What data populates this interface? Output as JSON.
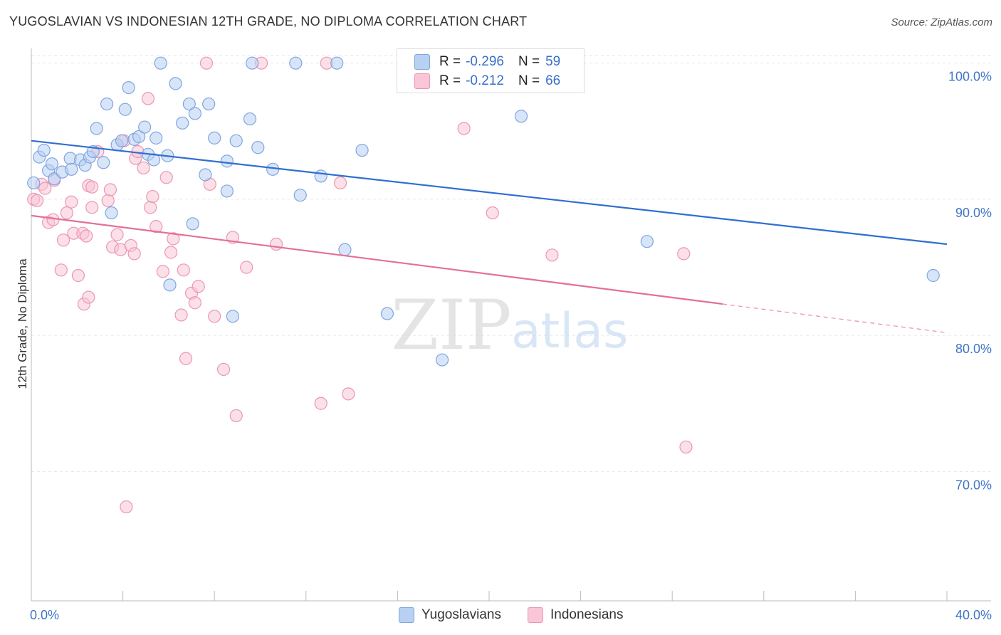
{
  "title": "YUGOSLAVIAN VS INDONESIAN 12TH GRADE, NO DIPLOMA CORRELATION CHART",
  "source": "Source: ZipAtlas.com",
  "watermark": {
    "zip": "ZIP",
    "atlas": "atlas"
  },
  "colors": {
    "blue_fill": "#b8d0f2",
    "blue_stroke": "#7ea6e0",
    "blue_line": "#2f6fd0",
    "pink_fill": "#f8c6d6",
    "pink_stroke": "#ec96b4",
    "pink_line": "#e46f97",
    "tick_label": "#3f74c7",
    "grid": "#e6e6e6"
  },
  "legend": {
    "r_label": "R =",
    "n_label": "N =",
    "rows": [
      {
        "series": "Yugoslavians",
        "r": "-0.296",
        "n": "59",
        "color": "#b8d0f2",
        "border": "#7ea6e0"
      },
      {
        "series": "Indonesians",
        "r": "-0.212",
        "n": "66",
        "color": "#f8c6d6",
        "border": "#ec96b4"
      }
    ]
  },
  "chart_data": {
    "type": "scatter",
    "title": "YUGOSLAVIAN VS INDONESIAN 12TH GRADE, NO DIPLOMA CORRELATION CHART",
    "xlabel": "",
    "ylabel": "12th Grade, No Diploma",
    "x_ticks": [
      "0.0%",
      "40.0%"
    ],
    "y_ticks": [
      "70.0%",
      "80.0%",
      "90.0%",
      "100.0%"
    ],
    "xlim": [
      0,
      40
    ],
    "ylim": [
      60.5,
      101.5
    ],
    "y_gridlines": [
      70,
      80,
      90,
      100
    ],
    "legend_position": "top-center",
    "series": [
      {
        "name": "Yugoslavians",
        "color": "#b8d0f2",
        "trend": {
          "x": [
            0,
            40
          ],
          "y": [
            94.3,
            86.7
          ],
          "dashed_from": null
        },
        "points": [
          [
            0.1,
            91.2
          ],
          [
            0.35,
            93.1
          ],
          [
            0.55,
            93.6
          ],
          [
            0.75,
            92.1
          ],
          [
            0.9,
            92.6
          ],
          [
            1.0,
            91.5
          ],
          [
            1.35,
            92.0
          ],
          [
            1.7,
            93.0
          ],
          [
            1.75,
            92.2
          ],
          [
            2.15,
            92.9
          ],
          [
            2.35,
            92.5
          ],
          [
            2.55,
            93.1
          ],
          [
            2.7,
            93.5
          ],
          [
            2.85,
            95.2
          ],
          [
            3.15,
            92.7
          ],
          [
            3.3,
            97.0
          ],
          [
            3.5,
            89.0
          ],
          [
            3.75,
            94.0
          ],
          [
            3.95,
            94.3
          ],
          [
            4.1,
            96.6
          ],
          [
            4.25,
            98.2
          ],
          [
            4.5,
            94.4
          ],
          [
            4.7,
            94.6
          ],
          [
            4.95,
            95.3
          ],
          [
            5.1,
            93.3
          ],
          [
            5.35,
            92.9
          ],
          [
            5.45,
            94.5
          ],
          [
            5.65,
            100.0
          ],
          [
            5.95,
            93.2
          ],
          [
            6.05,
            83.7
          ],
          [
            6.3,
            98.5
          ],
          [
            6.6,
            95.6
          ],
          [
            6.9,
            97.0
          ],
          [
            7.05,
            88.2
          ],
          [
            7.15,
            96.3
          ],
          [
            7.6,
            91.8
          ],
          [
            7.75,
            97.0
          ],
          [
            8.0,
            94.5
          ],
          [
            8.55,
            92.8
          ],
          [
            8.55,
            90.6
          ],
          [
            8.8,
            81.4
          ],
          [
            8.95,
            94.3
          ],
          [
            9.55,
            95.9
          ],
          [
            9.65,
            100.0
          ],
          [
            9.9,
            93.8
          ],
          [
            10.55,
            92.2
          ],
          [
            11.55,
            100.0
          ],
          [
            11.75,
            90.3
          ],
          [
            12.65,
            91.7
          ],
          [
            13.35,
            100.0
          ],
          [
            13.7,
            86.3
          ],
          [
            14.45,
            93.6
          ],
          [
            15.55,
            81.6
          ],
          [
            17.95,
            78.2
          ],
          [
            21.4,
            96.1
          ],
          [
            26.9,
            86.9
          ],
          [
            39.4,
            84.4
          ]
        ]
      },
      {
        "name": "Indonesians",
        "color": "#f8c6d6",
        "trend": {
          "x": [
            0,
            40
          ],
          "y": [
            88.8,
            80.2
          ],
          "dashed_from": 30.2
        },
        "points": [
          [
            0.1,
            90.0
          ],
          [
            0.25,
            89.9
          ],
          [
            0.45,
            91.1
          ],
          [
            0.6,
            90.8
          ],
          [
            0.75,
            88.3
          ],
          [
            0.95,
            88.5
          ],
          [
            1.0,
            91.4
          ],
          [
            1.3,
            84.8
          ],
          [
            1.4,
            87.0
          ],
          [
            1.55,
            89.0
          ],
          [
            1.75,
            89.8
          ],
          [
            1.85,
            87.5
          ],
          [
            2.05,
            84.4
          ],
          [
            2.25,
            87.5
          ],
          [
            2.3,
            82.3
          ],
          [
            2.4,
            87.3
          ],
          [
            2.5,
            82.8
          ],
          [
            2.5,
            91.0
          ],
          [
            2.65,
            90.9
          ],
          [
            2.65,
            89.4
          ],
          [
            2.9,
            93.5
          ],
          [
            3.35,
            89.9
          ],
          [
            3.45,
            90.7
          ],
          [
            3.55,
            86.5
          ],
          [
            3.75,
            87.4
          ],
          [
            3.9,
            86.3
          ],
          [
            4.05,
            94.3
          ],
          [
            4.15,
            67.4
          ],
          [
            4.35,
            86.6
          ],
          [
            4.5,
            86.0
          ],
          [
            4.55,
            93.0
          ],
          [
            4.65,
            93.5
          ],
          [
            4.9,
            92.3
          ],
          [
            5.1,
            97.4
          ],
          [
            5.2,
            89.4
          ],
          [
            5.3,
            90.2
          ],
          [
            5.45,
            88.0
          ],
          [
            5.75,
            84.7
          ],
          [
            5.9,
            91.6
          ],
          [
            6.1,
            86.1
          ],
          [
            6.2,
            87.1
          ],
          [
            6.55,
            81.5
          ],
          [
            6.65,
            84.8
          ],
          [
            6.75,
            78.3
          ],
          [
            7.0,
            83.1
          ],
          [
            7.15,
            82.4
          ],
          [
            7.3,
            83.6
          ],
          [
            7.65,
            100.0
          ],
          [
            7.8,
            91.1
          ],
          [
            8.0,
            81.4
          ],
          [
            8.4,
            77.5
          ],
          [
            8.8,
            87.2
          ],
          [
            8.95,
            74.1
          ],
          [
            9.4,
            85.0
          ],
          [
            10.05,
            100.0
          ],
          [
            10.7,
            86.7
          ],
          [
            12.65,
            75.0
          ],
          [
            12.9,
            100.0
          ],
          [
            13.5,
            91.2
          ],
          [
            13.85,
            75.7
          ],
          [
            18.9,
            95.2
          ],
          [
            20.15,
            89.0
          ],
          [
            22.75,
            85.9
          ],
          [
            28.5,
            86.0
          ],
          [
            28.6,
            71.8
          ]
        ]
      }
    ]
  },
  "bottom_legend": {
    "items": [
      "Yugoslavians",
      "Indonesians"
    ]
  }
}
